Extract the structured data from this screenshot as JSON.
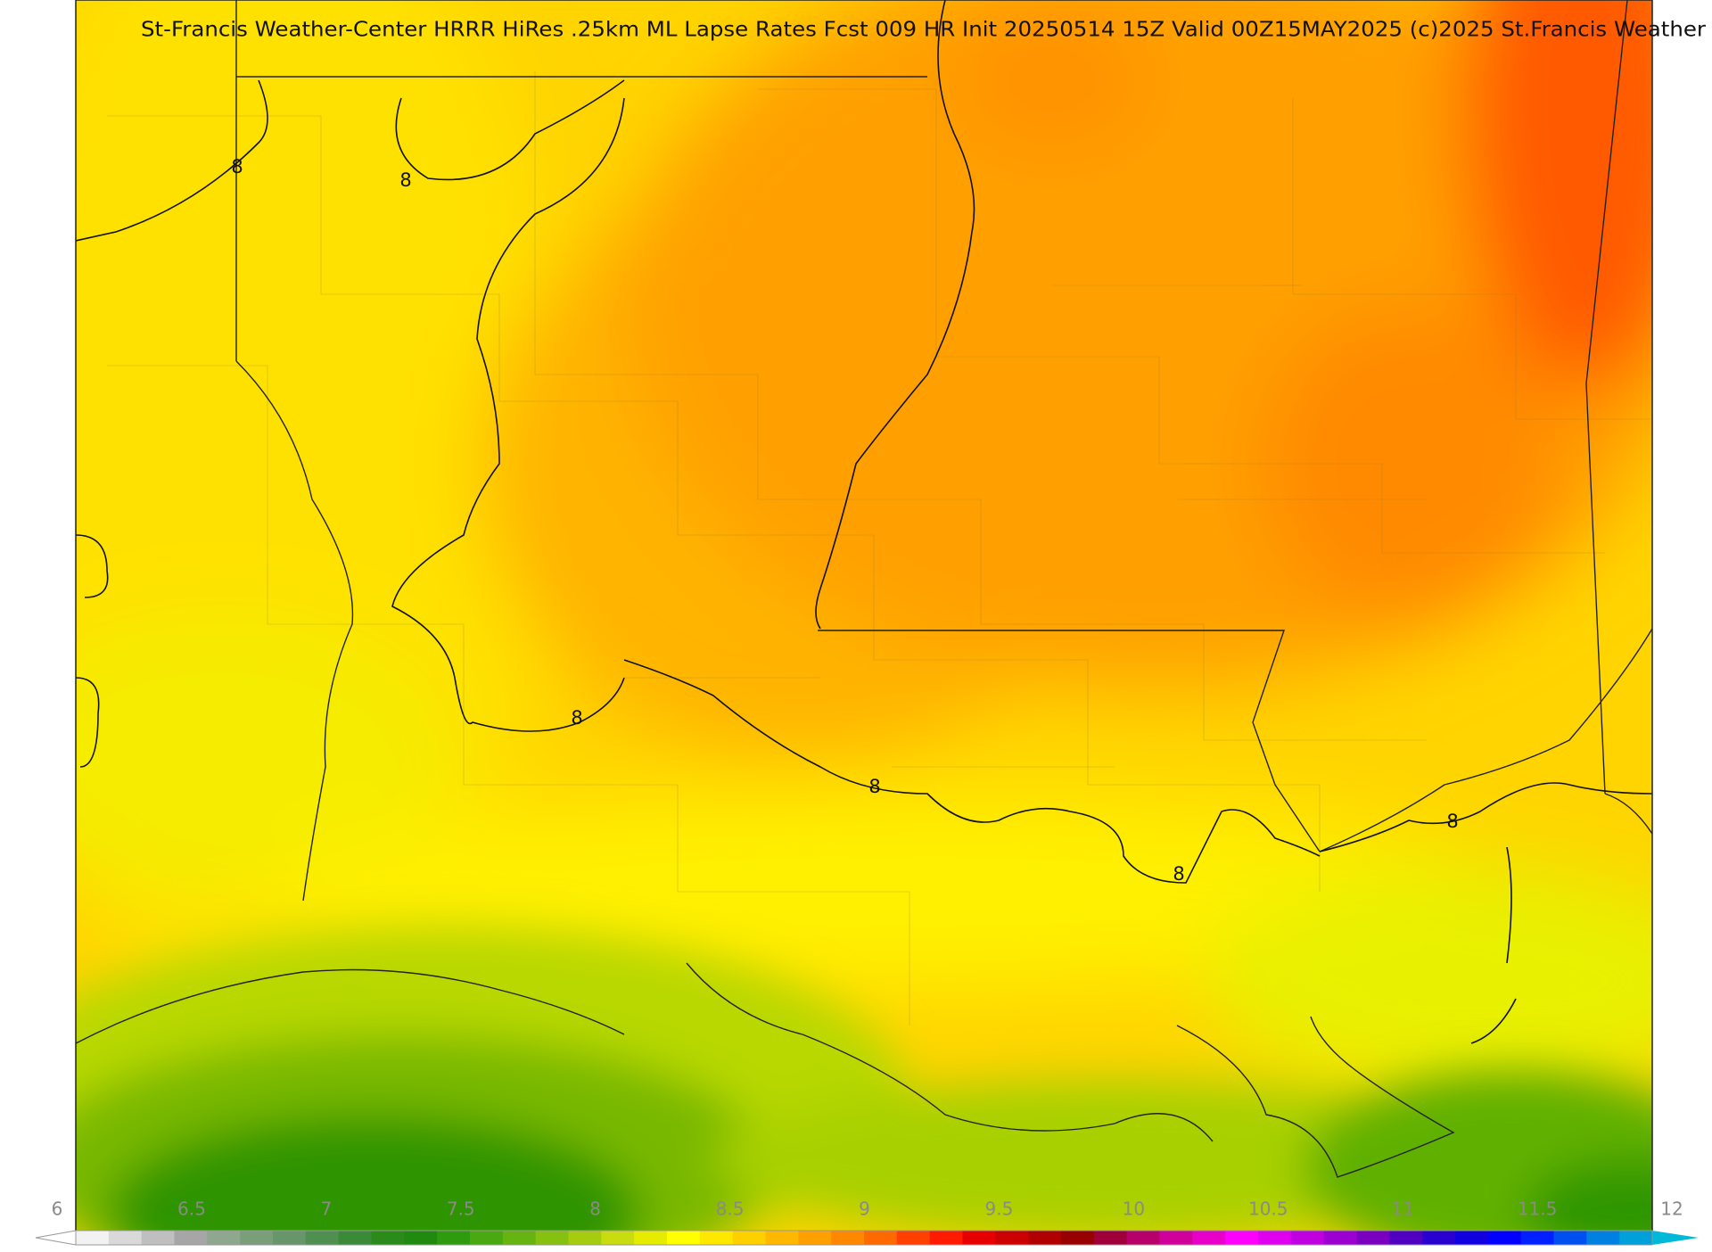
{
  "title": "St-Francis Weather-Center HRRR HiRes .25km ML Lapse Rates  Fcst 009 HR Init 20250514 15Z  Valid 00Z15MAY2025    (c)2025 St.Francis Weather",
  "contour_labels": [
    "8",
    "8",
    "8",
    "8",
    "8",
    "8"
  ],
  "colorbar": {
    "ticks": [
      6,
      6.5,
      7,
      7.5,
      8,
      8.5,
      9,
      9.5,
      10,
      10.5,
      11,
      11.5,
      12
    ],
    "colors": [
      "#f2f2f2",
      "#d9d9d9",
      "#bfbfbf",
      "#a6a6a6",
      "#8fa68f",
      "#7a9e7a",
      "#66966a",
      "#4f8f4f",
      "#3a8a3a",
      "#2a8a1a",
      "#1f8a0f",
      "#2e9a10",
      "#4aa810",
      "#66b410",
      "#86c010",
      "#a6cc10",
      "#c8dc10",
      "#e6ec00",
      "#ffff00",
      "#ffe800",
      "#ffd000",
      "#ffb800",
      "#ffa000",
      "#ff8800",
      "#ff6a00",
      "#ff4000",
      "#ff1a00",
      "#e60000",
      "#cc0000",
      "#b00000",
      "#990000",
      "#a0003a",
      "#b8006a",
      "#d0009a",
      "#e800c8",
      "#ff00ff",
      "#e000f0",
      "#c000e0",
      "#9a00d0",
      "#7a00c0",
      "#5000c0",
      "#2800d0",
      "#1000e0",
      "#0000ff",
      "#0020ff",
      "#0050f0",
      "#0080e0",
      "#00a0d8"
    ]
  }
}
